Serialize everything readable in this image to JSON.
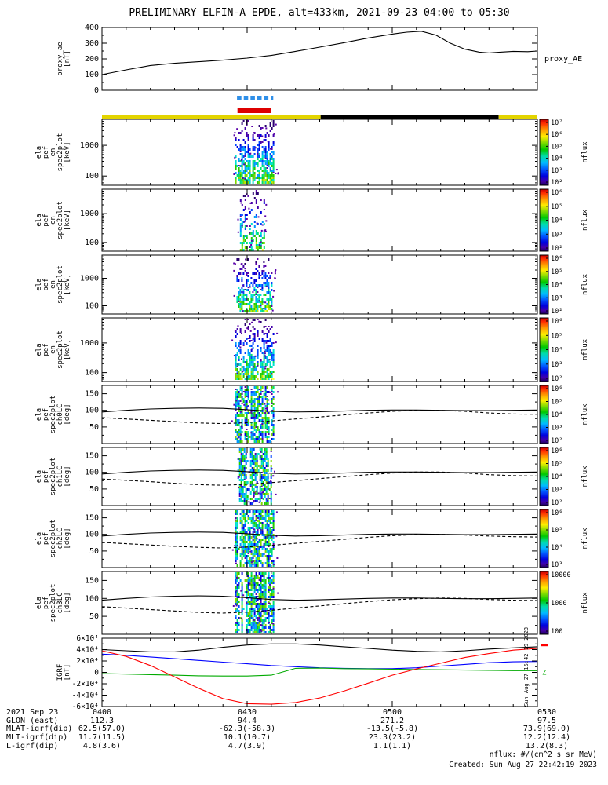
{
  "title": "PRELIMINARY ELFIN-A EPDE, alt=433km, 2021-09-23 04:00 to 05:30",
  "footer": {
    "nflux_units": "nflux: #/(cm^2 s sr MeV)",
    "created": "Created: Sun Aug 27 22:42:19 2023",
    "side_timestamp": "Sun Aug 27 15:42:19 2023"
  },
  "time_axis": {
    "date_label": "2021 Sep 23",
    "tick_labels": [
      "0400",
      "0430",
      "0500",
      "0530"
    ],
    "tick_minutes": [
      0,
      30,
      60,
      90
    ],
    "total_minutes": 90
  },
  "bottom_rows": [
    {
      "label": "2021 Sep 23",
      "values": [
        "0400",
        "0430",
        "0500",
        "0530"
      ]
    },
    {
      "label": "GLON (east)",
      "values": [
        "112.3",
        "94.4",
        "271.2",
        "97.5"
      ]
    },
    {
      "label": "MLAT-igrf(dip)",
      "values": [
        "62.5(57.0)",
        "-62.3(-58.3)",
        "-13.5(-5.8)",
        "73.9(69.0)"
      ]
    },
    {
      "label": "MLT-igrf(dip)",
      "values": [
        "11.7(11.5)",
        "10.1(10.7)",
        "23.3(23.2)",
        "12.2(12.4)"
      ]
    },
    {
      "label": "L-igrf(dip)",
      "values": [
        "4.8(3.6)",
        "4.7(3.9)",
        "1.1(1.1)",
        "13.2(8.3)"
      ]
    }
  ],
  "status_bars": {
    "blue_color": "#2f8fe8",
    "red_color": "#dd0000",
    "yellow_color": "#e3d400",
    "blue_dash_segments_minutes": [
      [
        27.9,
        28.8
      ],
      [
        29.3,
        30.2
      ],
      [
        30.7,
        31.6
      ],
      [
        32.1,
        33.0
      ],
      [
        33.5,
        34.4
      ],
      [
        34.9,
        35.4
      ]
    ],
    "red_bar_minutes": [
      28.0,
      35.0
    ],
    "zone_bar_segments": [
      {
        "from_min": 0,
        "to_min": 45.2,
        "color": "#e3d400"
      },
      {
        "from_min": 45.2,
        "to_min": 82.0,
        "color": "#000000"
      },
      {
        "from_min": 82.0,
        "to_min": 90,
        "color": "#e3d400"
      }
    ]
  },
  "chart_data": [
    {
      "type": "line",
      "id": "proxy_ae",
      "ylabel_lines": [
        "proxy_ae",
        "[nT]"
      ],
      "right_label": "proxy_AE",
      "ylim": [
        0,
        400
      ],
      "ytick_values": [
        0,
        100,
        200,
        300,
        400
      ],
      "ytick_labels": [
        "0",
        "100",
        "200",
        "300",
        "400"
      ],
      "line_color": "#000000",
      "x_minutes": [
        0,
        5,
        10,
        15,
        20,
        25,
        30,
        35,
        40,
        45,
        50,
        55,
        60,
        63,
        66,
        69,
        72,
        75,
        78,
        80,
        82,
        85,
        88,
        90
      ],
      "values": [
        100,
        130,
        158,
        172,
        182,
        192,
        205,
        222,
        248,
        275,
        303,
        333,
        358,
        370,
        376,
        352,
        300,
        262,
        243,
        238,
        242,
        248,
        246,
        250
      ]
    },
    {
      "type": "spectrogram",
      "id": "ela_pef_en_spec2plot_p1",
      "ylabel_lines": [
        "ela",
        "pef",
        "en",
        "spec2plot",
        "[keV]"
      ],
      "yscale": "log",
      "ylim_kev": [
        50,
        7000
      ],
      "ytick_values": [
        100,
        1000
      ],
      "ytick_labels": [
        "100",
        "1000"
      ],
      "burst_window_minutes": [
        27.5,
        35.5
      ],
      "density": 0.95,
      "seed": 11,
      "colorbar": {
        "label": "nflux",
        "ticks": [
          "10⁷",
          "10⁶",
          "10⁵",
          "10⁴",
          "10³",
          "10²"
        ]
      }
    },
    {
      "type": "spectrogram",
      "id": "ela_pef_en_spec2plot_p2",
      "ylabel_lines": [
        "ela",
        "pef",
        "en",
        "spec2plot",
        "[keV]"
      ],
      "yscale": "log",
      "ylim_kev": [
        50,
        7000
      ],
      "ytick_values": [
        100,
        1000
      ],
      "ytick_labels": [
        "100",
        "1000"
      ],
      "burst_window_minutes": [
        28.5,
        33.5
      ],
      "density": 0.5,
      "seed": 22,
      "colorbar": {
        "label": "nflux",
        "ticks": [
          "10⁶",
          "10⁵",
          "10⁴",
          "10³",
          "10²"
        ]
      }
    },
    {
      "type": "spectrogram",
      "id": "ela_pef_en_spec2plot_p3",
      "ylabel_lines": [
        "ela",
        "pef",
        "en",
        "spec2plot",
        "[keV]"
      ],
      "yscale": "log",
      "ylim_kev": [
        50,
        7000
      ],
      "ytick_values": [
        100,
        1000
      ],
      "ytick_labels": [
        "100",
        "1000"
      ],
      "burst_window_minutes": [
        27.8,
        35.0
      ],
      "density": 0.75,
      "seed": 33,
      "colorbar": {
        "label": "nflux",
        "ticks": [
          "10⁶",
          "10⁵",
          "10⁴",
          "10³",
          "10²"
        ]
      }
    },
    {
      "type": "spectrogram",
      "id": "ela_pef_en_spec2plot_p4",
      "ylabel_lines": [
        "ela",
        "pef",
        "en",
        "spec2plot",
        "[keV]"
      ],
      "yscale": "log",
      "ylim_kev": [
        50,
        7000
      ],
      "ytick_values": [
        100,
        1000
      ],
      "ytick_labels": [
        "100",
        "1000"
      ],
      "burst_window_minutes": [
        27.5,
        35.5
      ],
      "density": 0.85,
      "seed": 44,
      "colorbar": {
        "label": "nflux",
        "ticks": [
          "10⁶",
          "10⁵",
          "10⁴",
          "10³",
          "10²"
        ]
      }
    },
    {
      "type": "angle-spectrogram",
      "id": "ela_pef_spec2plot_ch0LC",
      "ylabel_lines": [
        "ela",
        "pef",
        "spec2plot",
        "ch0LC",
        "[deg]"
      ],
      "ylim": [
        0,
        175
      ],
      "ytick_values": [
        50,
        100,
        150
      ],
      "ytick_labels": [
        "50",
        "100",
        "150"
      ],
      "burst_window_minutes": [
        27.5,
        35.5
      ],
      "density": 0.9,
      "seed": 55,
      "x_minutes_step": 5,
      "solid_line_deg": [
        95,
        100,
        104,
        106,
        107,
        106,
        102,
        97,
        95,
        96,
        98,
        100,
        101,
        101,
        100,
        99,
        99,
        100,
        101
      ],
      "dashed_line_deg": [
        78,
        74,
        70,
        66,
        62,
        60,
        63,
        68,
        74,
        80,
        86,
        92,
        97,
        100,
        100,
        97,
        92,
        89,
        88
      ],
      "colorbar": {
        "label": "nflux",
        "ticks": [
          "10⁶",
          "10⁵",
          "10⁴",
          "10³",
          "10²"
        ]
      }
    },
    {
      "type": "angle-spectrogram",
      "id": "ela_pef_spec2plot_ch1LC",
      "ylabel_lines": [
        "ela",
        "pef",
        "spec2plot",
        "ch1LC",
        "[deg]"
      ],
      "ylim": [
        0,
        175
      ],
      "ytick_values": [
        50,
        100,
        150
      ],
      "ytick_labels": [
        "50",
        "100",
        "150"
      ],
      "burst_window_minutes": [
        28.0,
        35.0
      ],
      "density": 0.85,
      "seed": 66,
      "x_minutes_step": 5,
      "solid_line_deg": [
        95,
        100,
        104,
        106,
        107,
        106,
        102,
        97,
        95,
        96,
        98,
        100,
        101,
        101,
        100,
        99,
        99,
        100,
        101
      ],
      "dashed_line_deg": [
        80,
        76,
        72,
        67,
        63,
        61,
        64,
        69,
        75,
        81,
        87,
        93,
        98,
        101,
        101,
        98,
        93,
        90,
        89
      ],
      "colorbar": {
        "label": "nflux",
        "ticks": [
          "10⁶",
          "10⁵",
          "10⁴",
          "10³",
          "10²"
        ]
      }
    },
    {
      "type": "angle-spectrogram",
      "id": "ela_pef_spec2plot_ch2LC",
      "ylabel_lines": [
        "ela",
        "pef",
        "spec2plot",
        "ch2LC",
        "[deg]"
      ],
      "ylim": [
        0,
        175
      ],
      "ytick_values": [
        50,
        100,
        150
      ],
      "ytick_labels": [
        "50",
        "100",
        "150"
      ],
      "burst_window_minutes": [
        27.5,
        35.5
      ],
      "density": 0.9,
      "seed": 77,
      "x_minutes_step": 5,
      "solid_line_deg": [
        95,
        100,
        104,
        106,
        107,
        106,
        102,
        97,
        95,
        96,
        98,
        100,
        101,
        101,
        100,
        99,
        99,
        100,
        101
      ],
      "dashed_line_deg": [
        76,
        72,
        68,
        64,
        61,
        59,
        62,
        67,
        73,
        79,
        85,
        91,
        96,
        99,
        100,
        98,
        95,
        93,
        92
      ],
      "colorbar": {
        "label": "nflux",
        "ticks": [
          "10⁶",
          "10⁵",
          "10⁴",
          "10³"
        ]
      }
    },
    {
      "type": "angle-spectrogram",
      "id": "ela_pef_spec2plot_ch3LC",
      "ylabel_lines": [
        "ela",
        "pef",
        "spec2plot",
        "ch3LC",
        "[deg]"
      ],
      "ylim": [
        0,
        175
      ],
      "ytick_values": [
        50,
        100,
        150
      ],
      "ytick_labels": [
        "50",
        "100",
        "150"
      ],
      "burst_window_minutes": [
        27.5,
        35.5
      ],
      "density": 0.95,
      "seed": 88,
      "x_minutes_step": 5,
      "solid_line_deg": [
        95,
        100,
        104,
        106,
        107,
        106,
        102,
        97,
        95,
        96,
        98,
        100,
        101,
        101,
        100,
        99,
        99,
        100,
        101
      ],
      "dashed_line_deg": [
        77,
        73,
        69,
        65,
        61,
        59,
        62,
        67,
        73,
        79,
        85,
        91,
        96,
        99,
        101,
        100,
        97,
        95,
        94
      ],
      "colorbar": {
        "label": "nflux",
        "ticks": [
          "10000",
          "1000",
          "100"
        ]
      }
    },
    {
      "type": "multi-line",
      "id": "igrf",
      "ylabel_lines": [
        "IGRF",
        "[nT]"
      ],
      "ylim": [
        -60000,
        60000
      ],
      "ytick_values": [
        60000,
        40000,
        20000,
        0,
        -20000,
        -40000,
        -60000
      ],
      "ytick_labels": [
        "6×10⁴",
        "4×10⁴",
        "2×10⁴",
        "0",
        "-2×10⁴",
        "-4×10⁴",
        "-6×10⁴"
      ],
      "x_minutes_step": 5,
      "series": [
        {
          "name": "igrf-black",
          "color": "#000000",
          "values": [
            40000,
            38000,
            36000,
            36000,
            39000,
            44000,
            48000,
            50000,
            50000,
            48000,
            45000,
            42000,
            39000,
            37000,
            36000,
            38000,
            41000,
            43000,
            45000
          ]
        },
        {
          "name": "igrf-blue",
          "color": "#0000ff",
          "values": [
            32000,
            30000,
            27000,
            24000,
            21000,
            18000,
            15000,
            12000,
            10000,
            8000,
            7000,
            6500,
            6500,
            8000,
            11000,
            14000,
            17000,
            18500,
            19000
          ]
        },
        {
          "name": "igrf-green",
          "color": "#00aa00",
          "values": [
            -2000,
            -3000,
            -4000,
            -5000,
            -6000,
            -6500,
            -6500,
            -5000,
            7000,
            7500,
            6500,
            6000,
            5500,
            5000,
            4500,
            4000,
            3500,
            3000,
            3000
          ]
        },
        {
          "name": "igrf-red",
          "color": "#ff0000",
          "values": [
            38000,
            28000,
            12000,
            -8000,
            -28000,
            -46000,
            -55000,
            -56000,
            -53000,
            -45000,
            -33000,
            -19000,
            -5000,
            6000,
            16000,
            26000,
            33000,
            39000,
            42000
          ]
        }
      ],
      "right_markers": [
        {
          "type": "dash",
          "color": "#ff0000",
          "y_frac": 0.1
        },
        {
          "type": "text",
          "text": "Z",
          "color": "#00aa00",
          "y_frac": 0.5
        }
      ]
    }
  ]
}
